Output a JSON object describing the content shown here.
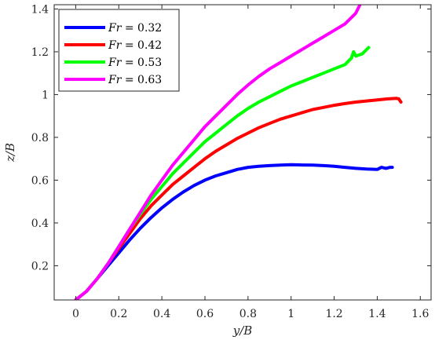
{
  "chart_data": {
    "type": "line",
    "xlabel": "y/B",
    "ylabel": "z/B",
    "xlim": [
      -0.1,
      1.65
    ],
    "ylim": [
      0.04,
      1.42
    ],
    "xticks": [
      0,
      0.2,
      0.4,
      0.6,
      0.8,
      1,
      1.2,
      1.4,
      1.6
    ],
    "yticks": [
      0.2,
      0.4,
      0.6,
      0.8,
      1,
      1.2,
      1.4
    ],
    "xtick_labels": [
      "0",
      "0.2",
      "0.4",
      "0.6",
      "0.8",
      "1",
      "1.2",
      "1.4",
      "1.6"
    ],
    "ytick_labels": [
      "0.2",
      "0.4",
      "0.6",
      "0.8",
      "1",
      "1.2",
      "1.4"
    ],
    "grid": false,
    "legend_position": "top-left",
    "series": [
      {
        "name": "Fr = 0.32",
        "color": "#0000ff",
        "x": [
          0,
          0.05,
          0.1,
          0.15,
          0.2,
          0.25,
          0.3,
          0.35,
          0.4,
          0.45,
          0.5,
          0.55,
          0.6,
          0.65,
          0.7,
          0.75,
          0.8,
          0.85,
          0.9,
          0.95,
          1.0,
          1.05,
          1.1,
          1.15,
          1.2,
          1.25,
          1.3,
          1.35,
          1.4,
          1.42,
          1.44,
          1.46,
          1.47
        ],
        "y": [
          0.04,
          0.08,
          0.14,
          0.2,
          0.26,
          0.32,
          0.375,
          0.425,
          0.47,
          0.51,
          0.545,
          0.575,
          0.6,
          0.62,
          0.635,
          0.65,
          0.66,
          0.665,
          0.668,
          0.67,
          0.672,
          0.671,
          0.67,
          0.668,
          0.665,
          0.66,
          0.655,
          0.652,
          0.65,
          0.66,
          0.655,
          0.66,
          0.66
        ]
      },
      {
        "name": "Fr = 0.42",
        "color": "#ff0000",
        "x": [
          0,
          0.05,
          0.1,
          0.15,
          0.2,
          0.25,
          0.3,
          0.35,
          0.4,
          0.45,
          0.5,
          0.55,
          0.6,
          0.65,
          0.7,
          0.75,
          0.8,
          0.85,
          0.9,
          0.95,
          1.0,
          1.05,
          1.1,
          1.15,
          1.2,
          1.25,
          1.3,
          1.35,
          1.4,
          1.45,
          1.49,
          1.5,
          1.51
        ],
        "y": [
          0.04,
          0.08,
          0.14,
          0.21,
          0.28,
          0.35,
          0.42,
          0.48,
          0.53,
          0.58,
          0.62,
          0.66,
          0.7,
          0.735,
          0.765,
          0.795,
          0.82,
          0.845,
          0.865,
          0.885,
          0.9,
          0.915,
          0.93,
          0.94,
          0.95,
          0.958,
          0.965,
          0.97,
          0.975,
          0.98,
          0.982,
          0.98,
          0.965
        ]
      },
      {
        "name": "Fr = 0.53",
        "color": "#00ff00",
        "x": [
          0,
          0.05,
          0.1,
          0.15,
          0.2,
          0.25,
          0.3,
          0.35,
          0.4,
          0.45,
          0.5,
          0.55,
          0.6,
          0.65,
          0.7,
          0.75,
          0.8,
          0.85,
          0.9,
          0.95,
          1.0,
          1.05,
          1.1,
          1.15,
          1.2,
          1.25,
          1.28,
          1.29,
          1.3,
          1.33,
          1.36
        ],
        "y": [
          0.04,
          0.08,
          0.14,
          0.21,
          0.29,
          0.37,
          0.44,
          0.51,
          0.57,
          0.63,
          0.68,
          0.73,
          0.78,
          0.82,
          0.86,
          0.9,
          0.935,
          0.965,
          0.99,
          1.015,
          1.04,
          1.06,
          1.08,
          1.1,
          1.12,
          1.14,
          1.17,
          1.2,
          1.18,
          1.19,
          1.22
        ]
      },
      {
        "name": "Fr = 0.63",
        "color": "#ff00ff",
        "x": [
          0,
          0.05,
          0.1,
          0.15,
          0.2,
          0.25,
          0.3,
          0.35,
          0.4,
          0.45,
          0.5,
          0.55,
          0.6,
          0.65,
          0.7,
          0.75,
          0.8,
          0.85,
          0.9,
          0.95,
          1.0,
          1.05,
          1.1,
          1.15,
          1.2,
          1.25,
          1.3,
          1.32
        ],
        "y": [
          0.04,
          0.08,
          0.14,
          0.21,
          0.29,
          0.37,
          0.45,
          0.53,
          0.6,
          0.67,
          0.73,
          0.79,
          0.85,
          0.9,
          0.95,
          1.0,
          1.045,
          1.085,
          1.12,
          1.15,
          1.18,
          1.21,
          1.24,
          1.27,
          1.3,
          1.33,
          1.38,
          1.42
        ]
      }
    ]
  }
}
